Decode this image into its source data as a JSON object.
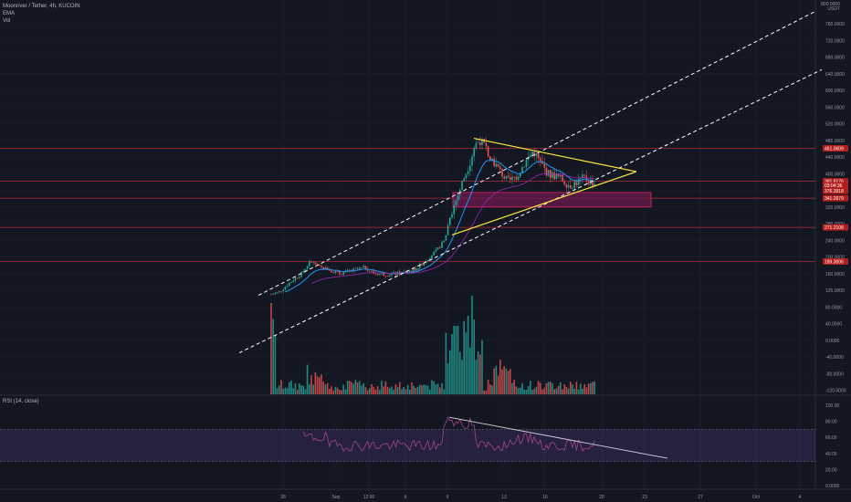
{
  "header": {
    "symbol_title": "Moonriver / Tether, 4h, KUCOIN",
    "indicators": [
      "EMA",
      "Vol"
    ]
  },
  "rsi_panel": {
    "title": "RSI (14, close)",
    "levels": [
      100,
      80,
      60,
      40,
      20,
      0
    ],
    "level_labels": [
      "100.00",
      "80.00",
      "60.00",
      "40.00",
      "20.00",
      "0.0000"
    ],
    "band": [
      30,
      70
    ]
  },
  "price_axis": {
    "currency": "USDT",
    "top_label": "800.0000",
    "ticks": [
      "760.0000",
      "720.0000",
      "680.0000",
      "640.0000",
      "600.0000",
      "560.0000",
      "520.0000",
      "480.0000",
      "440.0000",
      "400.0000",
      "360.0000",
      "320.0000",
      "280.0000",
      "240.0000",
      "200.0000",
      "160.0000",
      "120.0000",
      "80.0000",
      "40.0000",
      "0.0000",
      "-40.0000",
      "-80.0000",
      "-120.0000"
    ]
  },
  "time_axis": {
    "labels": [
      "28",
      "Sep",
      "12:00",
      "6",
      "9",
      "13",
      "16",
      "20",
      "23",
      "27",
      "Oct",
      "4"
    ]
  },
  "colors": {
    "background": "#131722",
    "bull": "#26a69a",
    "bear": "#ef5350",
    "ema": "#2196f3",
    "ema_slow": "#9c27b0",
    "horizontal_levels": "#b22833",
    "triangle": "#ffeb3b",
    "channel": "#ffffff",
    "zone_fill": "#6a1b4d",
    "zone_border": "#e91e63",
    "rsi_line": "#b54a9a",
    "rsi_band": "#7e57c2",
    "price_tag": "#b71c1c"
  },
  "chart_data": {
    "type": "candlestick",
    "title": "Moonriver / Tether, 4h, KUCOIN",
    "ylabel": "USDT",
    "ylim": [
      -140,
      800
    ],
    "horizontal_levels": [
      461.0609,
      381.8176,
      341.2679,
      271.2108,
      189.3006
    ],
    "price_tags": [
      {
        "label": "461.0609",
        "value": 461.0609
      },
      {
        "label": "381.8176",
        "value": 381.8176
      },
      {
        "label": "03:04:36",
        "value": 372
      },
      {
        "label": "376.3918",
        "value": 359
      },
      {
        "label": "341.2679",
        "value": 341.2679
      },
      {
        "label": "271.2108",
        "value": 271.2108
      },
      {
        "label": "189.3006",
        "value": 189.3006
      }
    ],
    "series_key_points": [
      {
        "time": "Aug 28",
        "price": 110
      },
      {
        "time": "Aug 30",
        "price": 190
      },
      {
        "time": "Sep 3",
        "price": 160
      },
      {
        "time": "Sep 8",
        "price": 175
      },
      {
        "time": "Sep 9",
        "price": 300
      },
      {
        "time": "Sep 10",
        "price": 480
      },
      {
        "time": "Sep 13",
        "price": 380
      },
      {
        "time": "Sep 15",
        "price": 460
      },
      {
        "time": "Sep 19",
        "price": 377
      }
    ],
    "volume_note": "Volume histogram shown in lower overlay",
    "drawings": {
      "resistance_zone": [
        320,
        355
      ],
      "triangle_apex": "Sep 22"
    }
  }
}
